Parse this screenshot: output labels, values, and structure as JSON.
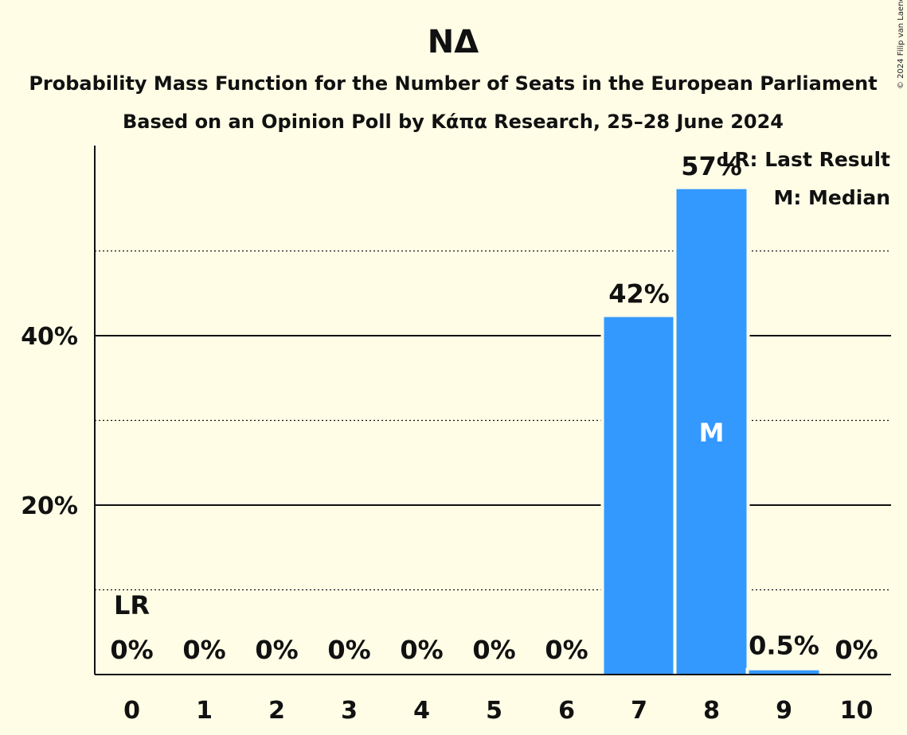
{
  "chart_data": {
    "type": "bar",
    "title": "ΝΔ",
    "subtitle": "Probability Mass Function for the Number of Seats in the European Parliament",
    "subtitle2": "Based on an Opinion Poll by Κάπα Research, 25–28 June 2024",
    "categories": [
      "0",
      "1",
      "2",
      "3",
      "4",
      "5",
      "6",
      "7",
      "8",
      "9",
      "10"
    ],
    "values": [
      0,
      0,
      0,
      0,
      0,
      0,
      0,
      42.2,
      57.3,
      0.5,
      0
    ],
    "value_labels": [
      "0%",
      "0%",
      "0%",
      "0%",
      "0%",
      "0%",
      "0%",
      "42%",
      "57%",
      "0.5%",
      "0%"
    ],
    "ylim": [
      0,
      60
    ],
    "y_major_ticks": [
      20,
      40
    ],
    "y_tick_labels": [
      "20%",
      "40%"
    ],
    "y_minor_gridlines": [
      10,
      30,
      50
    ],
    "last_result_index": 0,
    "last_result_marker": "LR",
    "median_index": 8,
    "median_marker": "M",
    "legend": [
      "LR: Last Result",
      "M: Median"
    ],
    "legend_position": "top-right",
    "bar_color": "#3399FF",
    "background_color": "#FFFDE6",
    "copyright": "© 2024 Filip van Laenen"
  }
}
